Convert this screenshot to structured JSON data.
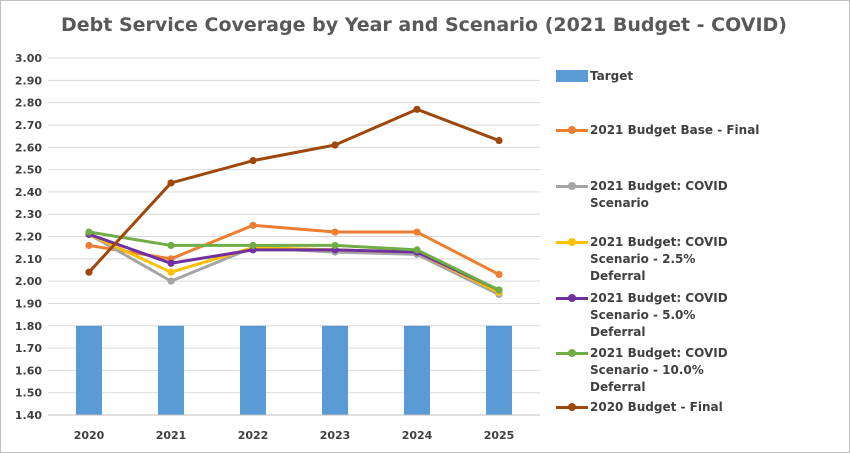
{
  "chart_data": {
    "type": "bar+line",
    "title": "Debt Service Coverage by Year and Scenario (2021 Budget - COVID)",
    "categories": [
      "2020",
      "2021",
      "2022",
      "2023",
      "2024",
      "2025"
    ],
    "ylim": [
      1.4,
      3.0
    ],
    "yticks": [
      "1.40",
      "1.50",
      "1.60",
      "1.70",
      "1.80",
      "1.90",
      "2.00",
      "2.10",
      "2.20",
      "2.30",
      "2.40",
      "2.50",
      "2.60",
      "2.70",
      "2.80",
      "2.90",
      "3.00"
    ],
    "grid": true,
    "legend_position": "right",
    "series": [
      {
        "name": "Target",
        "kind": "bar",
        "color": "#5b9bd5",
        "values": [
          1.8,
          1.8,
          1.8,
          1.8,
          1.8,
          1.8
        ]
      },
      {
        "name": "2021 Budget Base - Final",
        "kind": "line",
        "color": "#ed7d31",
        "values": [
          2.16,
          2.1,
          2.25,
          2.22,
          2.22,
          2.03
        ]
      },
      {
        "name": "2021 Budget: COVID Scenario",
        "kind": "line",
        "color": "#a5a5a5",
        "values": [
          2.21,
          2.0,
          2.15,
          2.13,
          2.12,
          1.94
        ]
      },
      {
        "name": "2021 Budget: COVID Scenario - 2.5% Deferral",
        "kind": "line",
        "color": "#ffc000",
        "values": [
          2.21,
          2.04,
          2.15,
          2.14,
          2.13,
          1.95
        ]
      },
      {
        "name": "2021 Budget: COVID Scenario - 5.0% Deferral",
        "kind": "line",
        "color": "#7030a0",
        "values": [
          2.21,
          2.08,
          2.14,
          2.14,
          2.13,
          1.96
        ]
      },
      {
        "name": "2021 Budget: COVID Scenario - 10.0% Deferral",
        "kind": "line",
        "color": "#70ad47",
        "values": [
          2.22,
          2.16,
          2.16,
          2.16,
          2.14,
          1.96
        ]
      },
      {
        "name": "2020 Budget - Final",
        "kind": "line",
        "color": "#9e480e",
        "values": [
          2.04,
          2.44,
          2.54,
          2.61,
          2.77,
          2.63
        ]
      }
    ],
    "legend_lines": [
      [
        "Target"
      ],
      [
        "2021 Budget Base - Final"
      ],
      [
        "2021 Budget: COVID Scenario"
      ],
      [
        "2021 Budget: COVID Scenario - 2.5%",
        "Deferral"
      ],
      [
        "2021 Budget: COVID Scenario - 5.0%",
        "Deferral"
      ],
      [
        "2021 Budget: COVID Scenario - 10.0%",
        "Deferral"
      ],
      [
        "2020 Budget - Final"
      ]
    ]
  }
}
